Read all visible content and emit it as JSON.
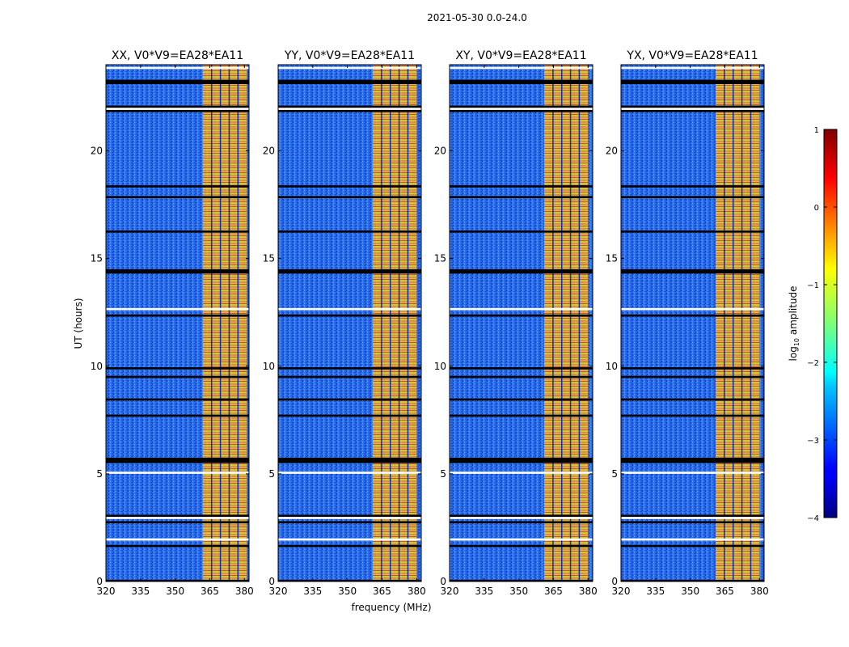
{
  "chart_data": {
    "type": "heatmap",
    "suptitle": "2021-05-30 0.0-24.0",
    "xlabel": "frequency (MHz)",
    "ylabel": "UT (hours)",
    "xlim": [
      320,
      382
    ],
    "ylim": [
      0,
      24
    ],
    "xticks": [
      320,
      335,
      350,
      365,
      380
    ],
    "yticks": [
      0,
      5,
      10,
      15,
      20
    ],
    "panels": [
      {
        "title": "XX, V0*V9=EA28*EA11",
        "bright_band_mhz": [
          362,
          381
        ]
      },
      {
        "title": "YY, V0*V9=EA28*EA11",
        "bright_band_mhz": [
          361,
          380
        ]
      },
      {
        "title": "XY, V0*V9=EA28*EA11",
        "bright_band_mhz": [
          361,
          380
        ]
      },
      {
        "title": "YX, V0*V9=EA28*EA11",
        "bright_band_mhz": [
          361,
          380
        ]
      }
    ],
    "colorbar": {
      "label": "log10 amplitude",
      "label_base": "log",
      "label_sub": "10",
      "label_rest": " amplitude",
      "range": [
        -4,
        1
      ],
      "ticks": [
        "1",
        "0",
        "−1",
        "−2",
        "−3",
        "−4"
      ],
      "colormap": "jet"
    },
    "flagged_hours": [
      [
        0.0,
        0.08
      ],
      [
        23.1,
        23.3
      ],
      [
        21.8,
        22.1
      ],
      [
        18.3,
        18.4
      ],
      [
        17.8,
        17.9
      ],
      [
        16.2,
        16.3
      ],
      [
        14.3,
        14.5
      ],
      [
        12.3,
        12.4
      ],
      [
        9.85,
        9.95
      ],
      [
        9.45,
        9.55
      ],
      [
        8.4,
        8.5
      ],
      [
        7.65,
        7.75
      ],
      [
        5.5,
        5.75
      ],
      [
        3.0,
        3.1
      ],
      [
        2.7,
        2.8
      ],
      [
        1.6,
        1.7
      ]
    ],
    "gap_hours": [
      [
        23.8,
        23.9
      ],
      [
        21.9,
        22.0
      ],
      [
        12.6,
        12.7
      ],
      [
        5.0,
        5.1
      ],
      [
        2.9,
        3.0
      ],
      [
        1.9,
        2.0
      ]
    ]
  }
}
